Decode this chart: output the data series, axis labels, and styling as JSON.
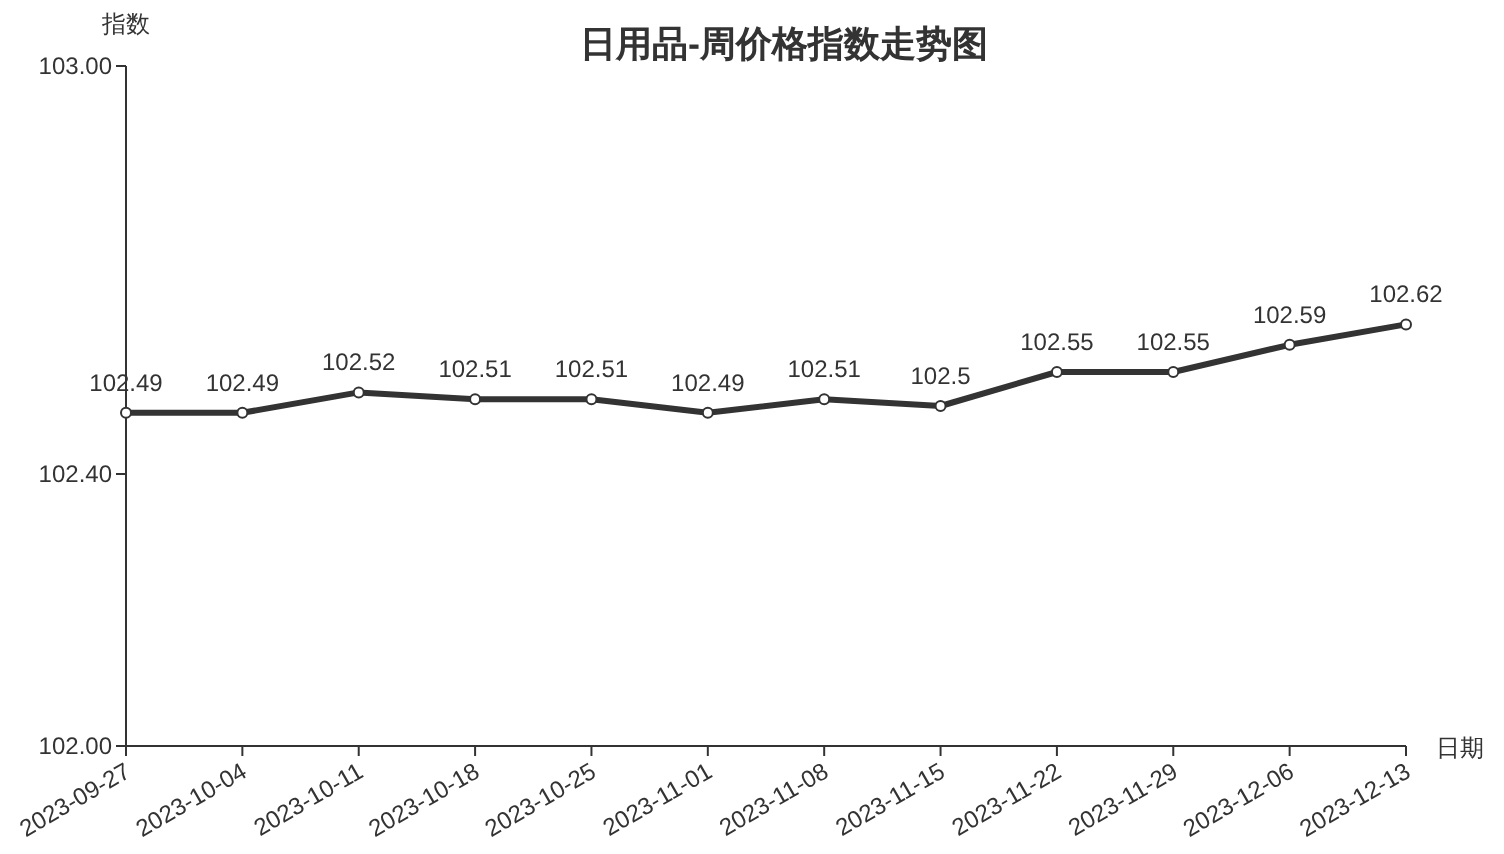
{
  "chart_data": {
    "type": "line",
    "title": "日用品-周价格指数走势图",
    "xlabel": "日期",
    "ylabel": "指数",
    "categories": [
      "2023-09-27",
      "2023-10-04",
      "2023-10-11",
      "2023-10-18",
      "2023-10-25",
      "2023-11-01",
      "2023-11-08",
      "2023-11-15",
      "2023-11-22",
      "2023-11-29",
      "2023-12-06",
      "2023-12-13"
    ],
    "series": [
      {
        "color": "#333333",
        "values": [
          102.49,
          102.49,
          102.52,
          102.51,
          102.51,
          102.49,
          102.51,
          102.5,
          102.55,
          102.55,
          102.59,
          102.62
        ]
      }
    ],
    "ylim": [
      102,
      103
    ],
    "yticks": [
      {
        "value": 102,
        "label": "102.00"
      },
      {
        "value": 102.4,
        "label": "102.40"
      },
      {
        "value": 103,
        "label": "103.00"
      }
    ],
    "data_labels": true,
    "marker": "circle",
    "line_style": "solid"
  }
}
